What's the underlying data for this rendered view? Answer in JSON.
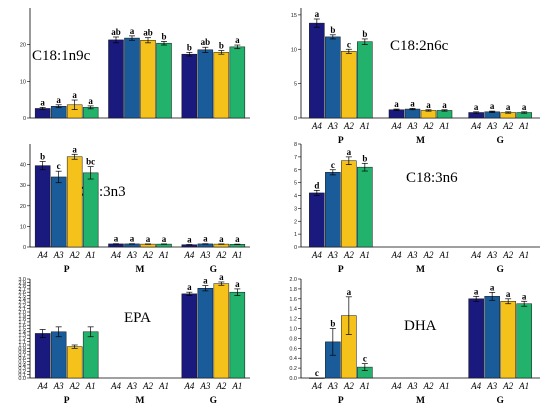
{
  "colors": {
    "A4": "#1a1a7e",
    "A3": "#1a5c9a",
    "A2": "#f5c21b",
    "A1": "#22b26b"
  },
  "chart_data": [
    {
      "type": "bar",
      "title": "C18:1n9c",
      "ylim": [
        0,
        30
      ],
      "yticks": [
        0,
        10,
        20
      ],
      "bar_labels": [
        "A4",
        "A3",
        "A2",
        "A1"
      ],
      "show_bar_labels": false,
      "groups": [
        "P",
        "M",
        "G"
      ],
      "show_groups": false,
      "series": [
        {
          "name": "A4",
          "values": [
            2.6,
            21.3,
            17.4
          ],
          "errors": [
            0.3,
            0.8,
            0.5
          ],
          "sig": [
            "a",
            "ab",
            "b"
          ]
        },
        {
          "name": "A3",
          "values": [
            3.2,
            21.8,
            18.6
          ],
          "errors": [
            0.4,
            0.6,
            0.7
          ],
          "sig": [
            "a",
            "a",
            "ab"
          ]
        },
        {
          "name": "A2",
          "values": [
            3.6,
            21.2,
            17.9
          ],
          "errors": [
            1.3,
            0.7,
            0.5
          ],
          "sig": [
            "a",
            "ab",
            "b"
          ]
        },
        {
          "name": "A1",
          "values": [
            2.9,
            20.4,
            19.4
          ],
          "errors": [
            0.4,
            0.5,
            0.5
          ],
          "sig": [
            "a",
            "b",
            "a"
          ]
        }
      ]
    },
    {
      "type": "bar",
      "title": "C18:2n6c",
      "ylim": [
        0,
        16
      ],
      "yticks": [
        0,
        5,
        10,
        15
      ],
      "bar_labels": [
        "A4",
        "A3",
        "A2",
        "A1"
      ],
      "show_bar_labels": true,
      "groups": [
        "P",
        "M",
        "G"
      ],
      "show_groups": true,
      "series": [
        {
          "name": "A4",
          "values": [
            13.8,
            1.2,
            0.8
          ],
          "errors": [
            0.6,
            0.1,
            0.1
          ],
          "sig": [
            "a",
            "a",
            "a"
          ]
        },
        {
          "name": "A3",
          "values": [
            11.8,
            1.3,
            0.9
          ],
          "errors": [
            0.3,
            0.1,
            0.1
          ],
          "sig": [
            "b",
            "a",
            "a"
          ]
        },
        {
          "name": "A2",
          "values": [
            9.7,
            1.1,
            0.8
          ],
          "errors": [
            0.3,
            0.1,
            0.1
          ],
          "sig": [
            "c",
            "a",
            "a"
          ]
        },
        {
          "name": "A1",
          "values": [
            11.1,
            1.1,
            0.8
          ],
          "errors": [
            0.4,
            0.1,
            0.1
          ],
          "sig": [
            "b",
            "a",
            "a"
          ]
        }
      ]
    },
    {
      "type": "bar",
      "title": "C18:3n3",
      "ylim": [
        0,
        50
      ],
      "yticks": [
        0,
        10,
        20,
        30,
        40
      ],
      "bar_labels": [
        "A4",
        "A3",
        "A2",
        "A1"
      ],
      "show_bar_labels": true,
      "groups": [
        "P",
        "M",
        "G"
      ],
      "show_groups": true,
      "series": [
        {
          "name": "A4",
          "values": [
            39.5,
            1.5,
            1.1
          ],
          "errors": [
            2.0,
            0.1,
            0.1
          ],
          "sig": [
            "b",
            "a",
            "a"
          ]
        },
        {
          "name": "A3",
          "values": [
            34.0,
            1.5,
            1.5
          ],
          "errors": [
            2.8,
            0.1,
            0.1
          ],
          "sig": [
            "c",
            "a",
            "a"
          ]
        },
        {
          "name": "A2",
          "values": [
            43.8,
            1.4,
            1.4
          ],
          "errors": [
            1.2,
            0.1,
            0.1
          ],
          "sig": [
            "a",
            "a",
            "a"
          ]
        },
        {
          "name": "A1",
          "values": [
            36.0,
            1.4,
            1.3
          ],
          "errors": [
            3.0,
            0.1,
            0.1
          ],
          "sig": [
            "bc",
            "a",
            "a"
          ]
        }
      ]
    },
    {
      "type": "bar",
      "title": "C18:3n6",
      "ylim": [
        0,
        8
      ],
      "yticks": [
        0,
        1,
        2,
        3,
        4,
        5,
        6,
        7,
        8
      ],
      "bar_labels": [
        "A4",
        "A3",
        "A2",
        "A1"
      ],
      "show_bar_labels": true,
      "groups": [
        "P",
        "M",
        "G"
      ],
      "show_groups": true,
      "series": [
        {
          "name": "A4",
          "values": [
            4.2,
            null,
            null
          ],
          "errors": [
            0.2,
            0,
            0
          ],
          "sig": [
            "d",
            "",
            ""
          ]
        },
        {
          "name": "A3",
          "values": [
            5.8,
            null,
            null
          ],
          "errors": [
            0.2,
            0,
            0
          ],
          "sig": [
            "c",
            "",
            ""
          ]
        },
        {
          "name": "A2",
          "values": [
            6.7,
            null,
            null
          ],
          "errors": [
            0.3,
            0,
            0
          ],
          "sig": [
            "a",
            "",
            ""
          ]
        },
        {
          "name": "A1",
          "values": [
            6.2,
            null,
            null
          ],
          "errors": [
            0.3,
            0,
            0
          ],
          "sig": [
            "b",
            "",
            ""
          ]
        }
      ]
    },
    {
      "type": "bar",
      "title": "EPA",
      "ylim": [
        0,
        3.0
      ],
      "yticks": [
        0.0,
        0.1,
        0.2,
        0.3,
        0.4,
        0.5,
        0.6,
        0.7,
        0.8,
        0.9,
        1.0,
        1.1,
        1.2,
        1.3,
        1.4,
        1.5,
        1.6,
        1.7,
        1.8,
        1.9,
        2.0,
        2.1,
        2.2,
        2.3,
        2.4,
        2.5,
        2.6,
        2.7,
        2.8,
        2.9,
        3.0
      ],
      "bar_labels": [
        "A4",
        "A3",
        "A2",
        "A1"
      ],
      "show_bar_labels": true,
      "groups": [
        "P",
        "M",
        "G"
      ],
      "show_groups": true,
      "series": [
        {
          "name": "A4",
          "values": [
            1.35,
            null,
            2.55
          ],
          "errors": [
            0.12,
            0,
            0.05
          ],
          "sig": [
            "",
            "",
            "a"
          ]
        },
        {
          "name": "A3",
          "values": [
            1.4,
            null,
            2.72
          ],
          "errors": [
            0.15,
            0,
            0.08
          ],
          "sig": [
            "",
            "",
            "a"
          ]
        },
        {
          "name": "A2",
          "values": [
            0.95,
            null,
            2.86
          ],
          "errors": [
            0.05,
            0,
            0.05
          ],
          "sig": [
            "",
            "",
            "a"
          ]
        },
        {
          "name": "A1",
          "values": [
            1.4,
            null,
            2.6
          ],
          "errors": [
            0.15,
            0,
            0.1
          ],
          "sig": [
            "",
            "",
            "a"
          ]
        }
      ]
    },
    {
      "type": "bar",
      "title": "DHA",
      "ylim": [
        0,
        2.0
      ],
      "yticks": [
        0.0,
        0.2,
        0.4,
        0.6,
        0.8,
        1.0,
        1.2,
        1.4,
        1.6,
        1.8,
        2.0
      ],
      "bar_labels": [
        "A4",
        "A3",
        "A2",
        "A1"
      ],
      "show_bar_labels": true,
      "groups": [
        "P",
        "M",
        "G"
      ],
      "show_groups": true,
      "series": [
        {
          "name": "A4",
          "values": [
            0.0,
            null,
            1.6
          ],
          "errors": [
            0,
            0,
            0.05
          ],
          "sig": [
            "c",
            "",
            "a"
          ]
        },
        {
          "name": "A3",
          "values": [
            0.73,
            null,
            1.65
          ],
          "errors": [
            0.27,
            0,
            0.08
          ],
          "sig": [
            "b",
            "",
            "a"
          ]
        },
        {
          "name": "A2",
          "values": [
            1.26,
            null,
            1.55
          ],
          "errors": [
            0.38,
            0,
            0.05
          ],
          "sig": [
            "a",
            "",
            "a"
          ]
        },
        {
          "name": "A1",
          "values": [
            0.22,
            null,
            1.5
          ],
          "errors": [
            0.07,
            0,
            0.05
          ],
          "sig": [
            "c",
            "",
            "a"
          ]
        }
      ]
    }
  ]
}
